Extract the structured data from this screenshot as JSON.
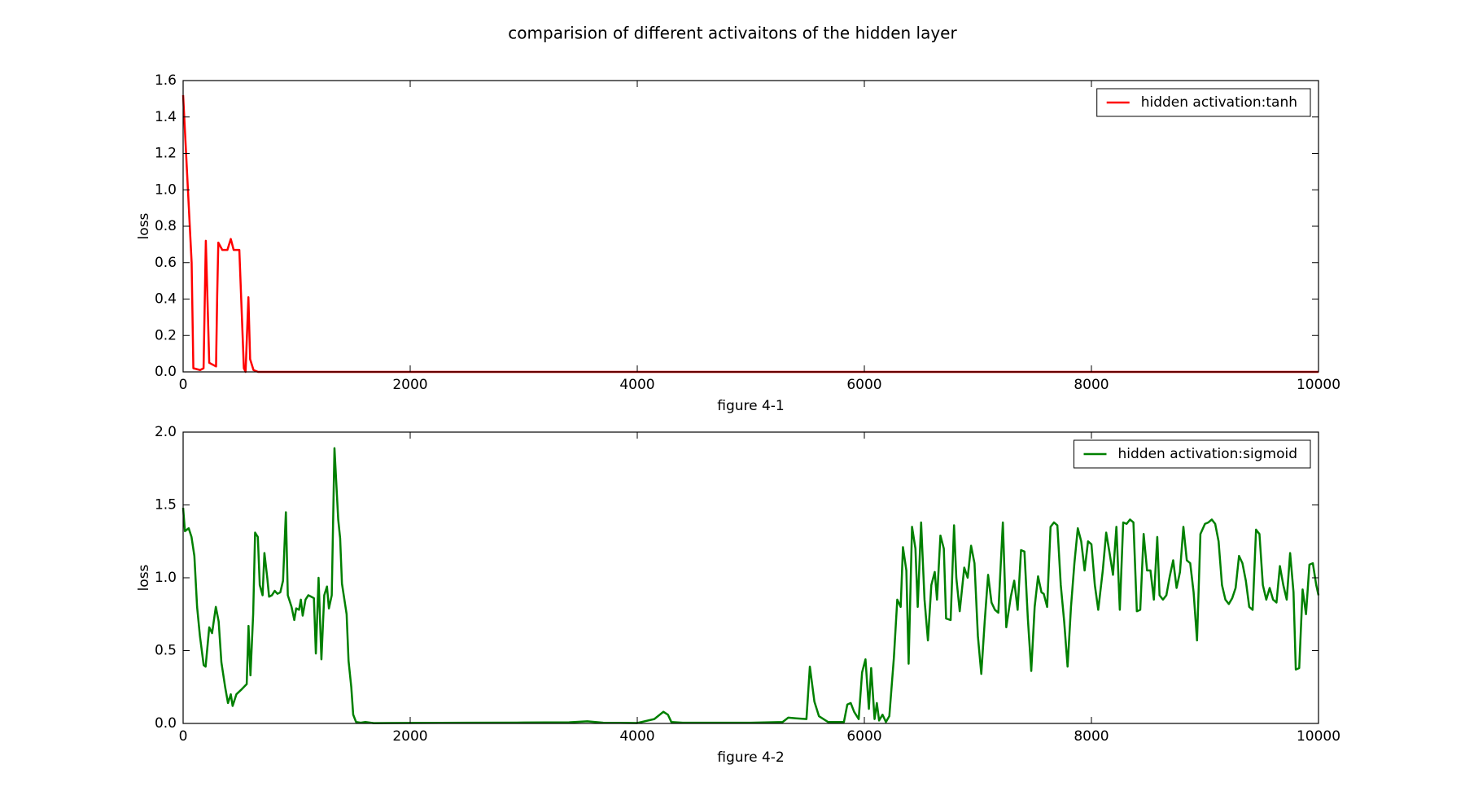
{
  "title": "comparision of different activaitons of the hidden layer",
  "chart_data": [
    {
      "type": "line",
      "xlabel": "figure 4-1",
      "ylabel": "loss",
      "legend": "upper right",
      "xlim": [
        0,
        10000
      ],
      "xticks": [
        0,
        2000,
        4000,
        6000,
        8000,
        10000
      ],
      "ylim": [
        0,
        1.6
      ],
      "yticks": [
        {
          "value": 0,
          "label": "0.0"
        },
        {
          "value": 0.2,
          "label": "0.2"
        },
        {
          "value": 0.4,
          "label": "0.4"
        },
        {
          "value": 0.6,
          "label": "0.6"
        },
        {
          "value": 0.8,
          "label": "0.8"
        },
        {
          "value": 1,
          "label": "1.0"
        },
        {
          "value": 1.2,
          "label": "1.2"
        },
        {
          "value": 1.4,
          "label": "1.4"
        },
        {
          "value": 1.6,
          "label": "1.6"
        }
      ],
      "x": [
        0,
        75,
        90,
        150,
        180,
        200,
        230,
        290,
        300,
        310,
        345,
        390,
        420,
        445,
        495,
        535,
        550,
        575,
        590,
        620,
        660,
        10000
      ],
      "series": [
        {
          "name": "hidden activation:tanh",
          "color": "#ff0000",
          "values": [
            1.52,
            0.6,
            0.02,
            0.01,
            0.02,
            0.72,
            0.05,
            0.03,
            0.42,
            0.71,
            0.67,
            0.67,
            0.73,
            0.67,
            0.67,
            0.02,
            0.0,
            0.41,
            0.07,
            0.01,
            0.0,
            0.0
          ]
        }
      ]
    },
    {
      "type": "line",
      "xlabel": "figure 4-2",
      "ylabel": "loss",
      "legend": "upper right",
      "xlim": [
        0,
        10000
      ],
      "xticks": [
        0,
        2000,
        4000,
        6000,
        8000,
        10000
      ],
      "ylim": [
        0,
        2
      ],
      "yticks": [
        {
          "value": 0,
          "label": "0.0"
        },
        {
          "value": 0.5,
          "label": "0.5"
        },
        {
          "value": 1,
          "label": "1.0"
        },
        {
          "value": 1.5,
          "label": "1.5"
        },
        {
          "value": 2,
          "label": "2.0"
        }
      ],
      "x": [
        0,
        16,
        49,
        74,
        99,
        123,
        148,
        181,
        198,
        230,
        255,
        288,
        313,
        337,
        370,
        395,
        420,
        436,
        469,
        510,
        560,
        576,
        593,
        617,
        634,
        658,
        675,
        700,
        716,
        741,
        757,
        782,
        807,
        831,
        856,
        880,
        905,
        922,
        955,
        979,
        996,
        1021,
        1037,
        1053,
        1078,
        1103,
        1128,
        1152,
        1169,
        1193,
        1218,
        1243,
        1267,
        1284,
        1309,
        1333,
        1366,
        1383,
        1399,
        1440,
        1457,
        1481,
        1498,
        1523,
        1564,
        1605,
        1679,
        1800,
        2500,
        3000,
        3400,
        3560,
        3700,
        4000,
        4150,
        4230,
        4270,
        4300,
        4400,
        5000,
        5280,
        5330,
        5400,
        5490,
        5520,
        5560,
        5600,
        5680,
        5820,
        5850,
        5880,
        5910,
        5950,
        5980,
        6010,
        6040,
        6060,
        6090,
        6110,
        6130,
        6160,
        6190,
        6220,
        6260,
        6290,
        6320,
        6340,
        6370,
        6390,
        6420,
        6450,
        6470,
        6500,
        6530,
        6560,
        6590,
        6620,
        6640,
        6670,
        6700,
        6720,
        6760,
        6790,
        6810,
        6840,
        6880,
        6910,
        6940,
        6970,
        7000,
        7030,
        7060,
        7090,
        7120,
        7150,
        7180,
        7220,
        7250,
        7290,
        7320,
        7350,
        7380,
        7410,
        7440,
        7470,
        7500,
        7530,
        7560,
        7580,
        7610,
        7640,
        7670,
        7700,
        7730,
        7760,
        7790,
        7820,
        7850,
        7880,
        7910,
        7940,
        7970,
        8000,
        8030,
        8060,
        8100,
        8130,
        8160,
        8190,
        8220,
        8250,
        8280,
        8310,
        8340,
        8370,
        8400,
        8430,
        8460,
        8490,
        8520,
        8550,
        8580,
        8600,
        8630,
        8660,
        8690,
        8720,
        8750,
        8780,
        8810,
        8840,
        8870,
        8900,
        8930,
        8960,
        9000,
        9030,
        9060,
        9090,
        9120,
        9150,
        9180,
        9210,
        9240,
        9270,
        9300,
        9330,
        9360,
        9390,
        9420,
        9450,
        9480,
        9510,
        9540,
        9570,
        9600,
        9630,
        9660,
        9690,
        9720,
        9750,
        9780,
        9800,
        9830,
        9860,
        9890,
        9920,
        9950,
        9980,
        10000
      ],
      "series": [
        {
          "name": "hidden activation:sigmoid",
          "color": "#008000",
          "values": [
            1.48,
            1.32,
            1.34,
            1.28,
            1.15,
            0.8,
            0.6,
            0.4,
            0.39,
            0.66,
            0.62,
            0.8,
            0.7,
            0.42,
            0.25,
            0.14,
            0.2,
            0.12,
            0.2,
            0.23,
            0.27,
            0.67,
            0.33,
            0.75,
            1.31,
            1.28,
            0.95,
            0.88,
            1.17,
            1.0,
            0.87,
            0.88,
            0.91,
            0.89,
            0.9,
            0.98,
            1.45,
            0.88,
            0.8,
            0.71,
            0.79,
            0.78,
            0.85,
            0.74,
            0.85,
            0.88,
            0.87,
            0.86,
            0.48,
            1.0,
            0.44,
            0.88,
            0.94,
            0.79,
            0.88,
            1.89,
            1.4,
            1.27,
            0.96,
            0.75,
            0.43,
            0.25,
            0.06,
            0.01,
            0.005,
            0.01,
            0.002,
            0.003,
            0.005,
            0.006,
            0.008,
            0.015,
            0.005,
            0.003,
            0.03,
            0.08,
            0.06,
            0.01,
            0.005,
            0.005,
            0.01,
            0.04,
            0.035,
            0.03,
            0.39,
            0.15,
            0.05,
            0.01,
            0.01,
            0.13,
            0.14,
            0.08,
            0.03,
            0.35,
            0.44,
            0.1,
            0.38,
            0.03,
            0.14,
            0.02,
            0.06,
            0.01,
            0.05,
            0.45,
            0.85,
            0.8,
            1.21,
            1.05,
            0.41,
            1.35,
            1.2,
            0.8,
            1.38,
            0.85,
            0.57,
            0.95,
            1.04,
            0.85,
            1.29,
            1.2,
            0.72,
            0.71,
            1.36,
            1.0,
            0.77,
            1.07,
            1.0,
            1.22,
            1.1,
            0.6,
            0.34,
            0.7,
            1.02,
            0.83,
            0.78,
            0.76,
            1.38,
            0.66,
            0.87,
            0.98,
            0.78,
            1.19,
            1.18,
            0.72,
            0.36,
            0.8,
            1.01,
            0.9,
            0.89,
            0.8,
            1.35,
            1.38,
            1.36,
            0.95,
            0.7,
            0.39,
            0.8,
            1.1,
            1.34,
            1.25,
            1.05,
            1.25,
            1.23,
            0.95,
            0.78,
            1.05,
            1.31,
            1.17,
            1.02,
            1.35,
            0.78,
            1.38,
            1.37,
            1.4,
            1.38,
            0.77,
            0.78,
            1.3,
            1.05,
            1.05,
            0.85,
            1.28,
            0.88,
            0.85,
            0.88,
            1.01,
            1.12,
            0.93,
            1.04,
            1.35,
            1.12,
            1.1,
            0.9,
            0.57,
            1.3,
            1.37,
            1.38,
            1.4,
            1.37,
            1.25,
            0.95,
            0.85,
            0.82,
            0.86,
            0.93,
            1.15,
            1.1,
            0.98,
            0.8,
            0.78,
            1.33,
            1.3,
            0.95,
            0.85,
            0.93,
            0.85,
            0.83,
            1.08,
            0.95,
            0.85,
            1.17,
            0.9,
            0.37,
            0.38,
            0.92,
            0.75,
            1.09,
            1.1,
            0.95,
            0.88
          ]
        }
      ]
    }
  ]
}
